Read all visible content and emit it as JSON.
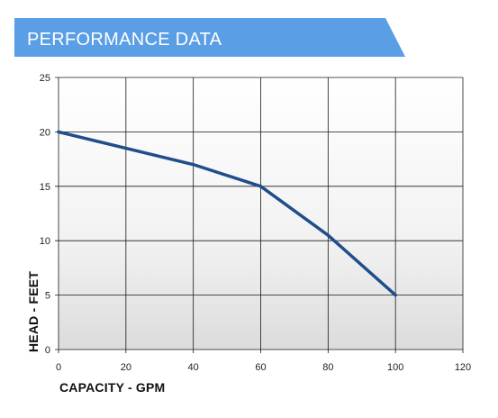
{
  "header": {
    "title": "PERFORMANCE DATA",
    "banner_color": "#5a9ee6"
  },
  "chart_data": {
    "type": "line",
    "title": "PERFORMANCE DATA",
    "xlabel": "CAPACITY - GPM",
    "ylabel": "HEAD - FEET",
    "xlim": [
      0,
      120
    ],
    "ylim": [
      0,
      25
    ],
    "xticks": [
      0,
      20,
      40,
      60,
      80,
      100,
      120
    ],
    "yticks": [
      0,
      5,
      10,
      15,
      20,
      25
    ],
    "grid": true,
    "series": [
      {
        "color": "#1f4e8a",
        "x": [
          0,
          20,
          40,
          60,
          80,
          100
        ],
        "y": [
          20,
          18.5,
          17,
          15,
          10.5,
          5
        ]
      }
    ]
  }
}
